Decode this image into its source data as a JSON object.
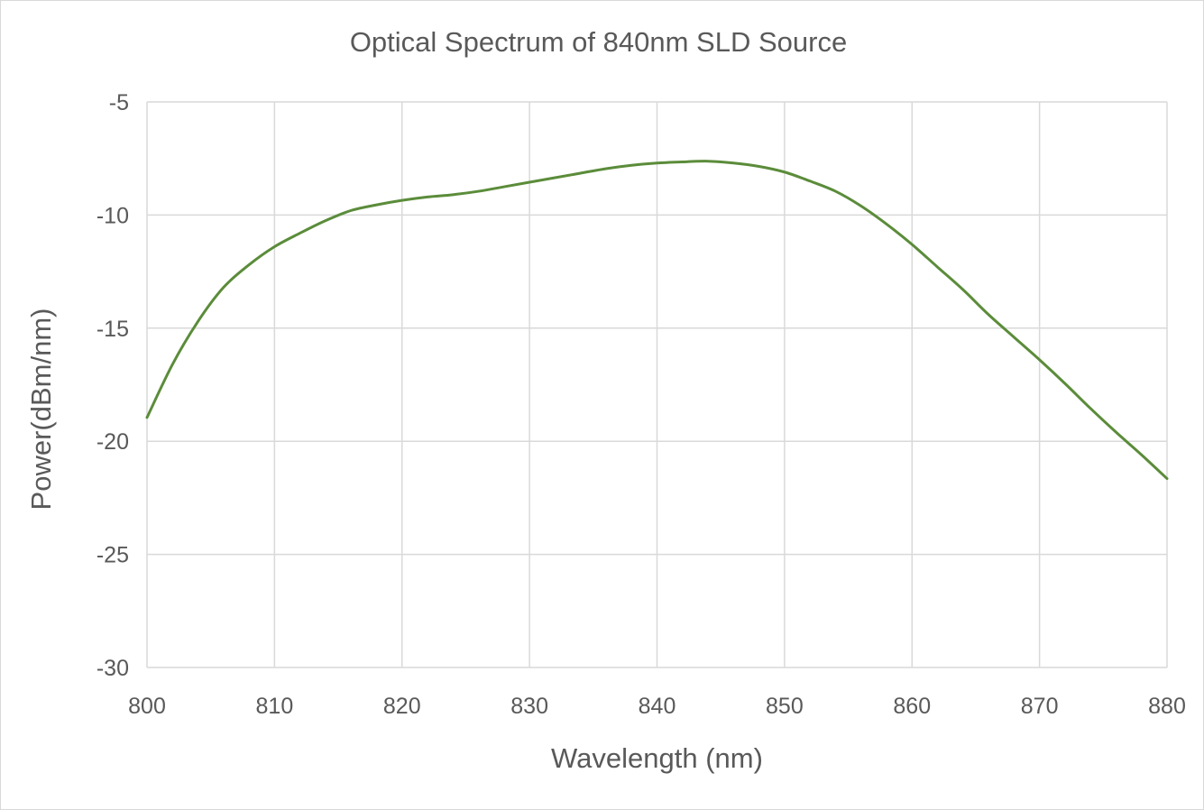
{
  "chart_data": {
    "type": "line",
    "title": "Optical Spectrum of 840nm SLD Source",
    "xlabel": "Wavelength (nm)",
    "ylabel": "Power(dBm/nm)",
    "xlim": [
      800,
      880
    ],
    "ylim": [
      -30,
      -5
    ],
    "x_ticks": [
      800,
      810,
      820,
      830,
      840,
      850,
      860,
      870,
      880
    ],
    "y_ticks": [
      -5,
      -10,
      -15,
      -20,
      -25,
      -30
    ],
    "x_tick_labels": [
      "800",
      "810",
      "820",
      "830",
      "840",
      "850",
      "860",
      "870",
      "880"
    ],
    "y_tick_labels": [
      "-5",
      "-10",
      "-15",
      "-20",
      "-25",
      "-30"
    ],
    "grid": true,
    "legend": "none",
    "series": [
      {
        "color": "#5b8c3a",
        "x": [
          800,
          802,
          804,
          806,
          808,
          810,
          812,
          814,
          816,
          818,
          820,
          822,
          824,
          826,
          828,
          830,
          832,
          834,
          836,
          838,
          840,
          842,
          844,
          846,
          848,
          850,
          852,
          854,
          856,
          858,
          860,
          862,
          864,
          866,
          868,
          870,
          872,
          874,
          876,
          878,
          880
        ],
        "y": [
          -18.95,
          -16.6,
          -14.7,
          -13.2,
          -12.2,
          -11.4,
          -10.8,
          -10.25,
          -9.8,
          -9.55,
          -9.35,
          -9.2,
          -9.1,
          -8.95,
          -8.75,
          -8.55,
          -8.35,
          -8.15,
          -7.95,
          -7.8,
          -7.7,
          -7.65,
          -7.62,
          -7.7,
          -7.85,
          -8.1,
          -8.5,
          -8.95,
          -9.6,
          -10.4,
          -11.3,
          -12.3,
          -13.3,
          -14.4,
          -15.4,
          -16.4,
          -17.45,
          -18.55,
          -19.6,
          -20.6,
          -21.65
        ]
      }
    ]
  }
}
